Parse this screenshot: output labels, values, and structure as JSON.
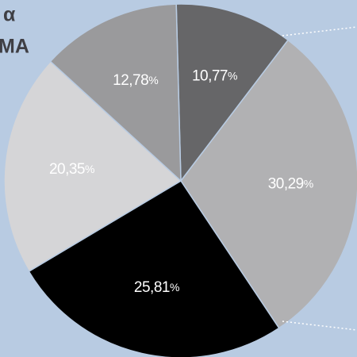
{
  "chart_data": {
    "type": "pie",
    "title_lines": [
      "α",
      "MA"
    ],
    "categories": [
      null,
      null,
      null,
      null,
      null
    ],
    "values": [
      10.77,
      30.29,
      25.81,
      20.35,
      12.78
    ],
    "value_labels": [
      "10,77%",
      "30,29%",
      "25,81%",
      "20,35%",
      "12,78%"
    ],
    "colors": [
      "#666668",
      "#b1b1b3",
      "#000000",
      "#d5d5d7",
      "#9a9a9c"
    ],
    "background": "#b8cbe2"
  }
}
